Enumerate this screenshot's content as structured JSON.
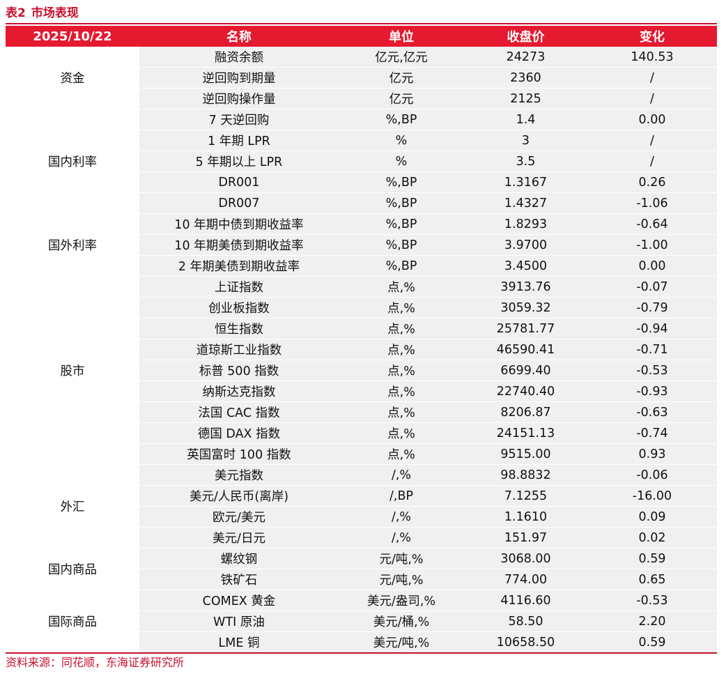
{
  "caption": {
    "number": "表2",
    "title": "市场表现"
  },
  "header": {
    "date": "2025/10/22",
    "name": "名称",
    "unit": "单位",
    "close": "收盘价",
    "change": "变化"
  },
  "groups": [
    {
      "label": "资金",
      "rows": [
        {
          "name": "融资余额",
          "unit": "亿元,亿元",
          "close": "24273",
          "change": "140.53"
        },
        {
          "name": "逆回购到期量",
          "unit": "亿元",
          "close": "2360",
          "change": "/"
        },
        {
          "name": "逆回购操作量",
          "unit": "亿元",
          "close": "2125",
          "change": "/"
        }
      ]
    },
    {
      "label": "国内利率",
      "rows": [
        {
          "name": "7 天逆回购",
          "unit": "%,BP",
          "close": "1.4",
          "change": "0.00"
        },
        {
          "name": "1 年期 LPR",
          "unit": "%",
          "close": "3",
          "change": "/"
        },
        {
          "name": "5 年期以上 LPR",
          "unit": "%",
          "close": "3.5",
          "change": "/"
        },
        {
          "name": "DR001",
          "unit": "%,BP",
          "close": "1.3167",
          "change": "0.26"
        },
        {
          "name": "DR007",
          "unit": "%,BP",
          "close": "1.4327",
          "change": "-1.06"
        }
      ]
    },
    {
      "label": "国外利率",
      "rows": [
        {
          "name": "10 年期中债到期收益率",
          "unit": "%,BP",
          "close": "1.8293",
          "change": "-0.64"
        },
        {
          "name": "10 年期美债到期收益率",
          "unit": "%,BP",
          "close": "3.9700",
          "change": "-1.00"
        },
        {
          "name": "2 年期美债到期收益率",
          "unit": "%,BP",
          "close": "3.4500",
          "change": "0.00"
        }
      ]
    },
    {
      "label": "股市",
      "rows": [
        {
          "name": "上证指数",
          "unit": "点,%",
          "close": "3913.76",
          "change": "-0.07"
        },
        {
          "name": "创业板指数",
          "unit": "点,%",
          "close": "3059.32",
          "change": "-0.79"
        },
        {
          "name": "恒生指数",
          "unit": "点,%",
          "close": "25781.77",
          "change": "-0.94"
        },
        {
          "name": "道琼斯工业指数",
          "unit": "点,%",
          "close": "46590.41",
          "change": "-0.71"
        },
        {
          "name": "标普 500 指数",
          "unit": "点,%",
          "close": "6699.40",
          "change": "-0.53"
        },
        {
          "name": "纳斯达克指数",
          "unit": "点,%",
          "close": "22740.40",
          "change": "-0.93"
        },
        {
          "name": "法国 CAC 指数",
          "unit": "点,%",
          "close": "8206.87",
          "change": "-0.63"
        },
        {
          "name": "德国 DAX 指数",
          "unit": "点,%",
          "close": "24151.13",
          "change": "-0.74"
        },
        {
          "name": "英国富时 100 指数",
          "unit": "点,%",
          "close": "9515.00",
          "change": "0.93"
        }
      ]
    },
    {
      "label": "外汇",
      "rows": [
        {
          "name": "美元指数",
          "unit": "/,%",
          "close": "98.8832",
          "change": "-0.06"
        },
        {
          "name": "美元/人民币(离岸)",
          "unit": "/,BP",
          "close": "7.1255",
          "change": "-16.00"
        },
        {
          "name": "欧元/美元",
          "unit": "/,%",
          "close": "1.1610",
          "change": "0.09"
        },
        {
          "name": "美元/日元",
          "unit": "/,%",
          "close": "151.97",
          "change": "0.02"
        }
      ]
    },
    {
      "label": "国内商品",
      "rows": [
        {
          "name": "螺纹钢",
          "unit": "元/吨,%",
          "close": "3068.00",
          "change": "0.59"
        },
        {
          "name": "铁矿石",
          "unit": "元/吨,%",
          "close": "774.00",
          "change": "0.65"
        }
      ]
    },
    {
      "label": "国际商品",
      "rows": [
        {
          "name": "COMEX 黄金",
          "unit": "美元/盎司,%",
          "close": "4116.60",
          "change": "-0.53"
        },
        {
          "name": "WTI 原油",
          "unit": "美元/桶,%",
          "close": "58.50",
          "change": "2.20"
        },
        {
          "name": "LME 铜",
          "unit": "美元/吨,%",
          "close": "10658.50",
          "change": "0.59"
        }
      ]
    }
  ],
  "source": "资料来源：同花顺，东海证券研究所",
  "colors": {
    "accent": "#e5192f",
    "text_red": "#c8102e",
    "row_bg": "#f0f0f0"
  }
}
